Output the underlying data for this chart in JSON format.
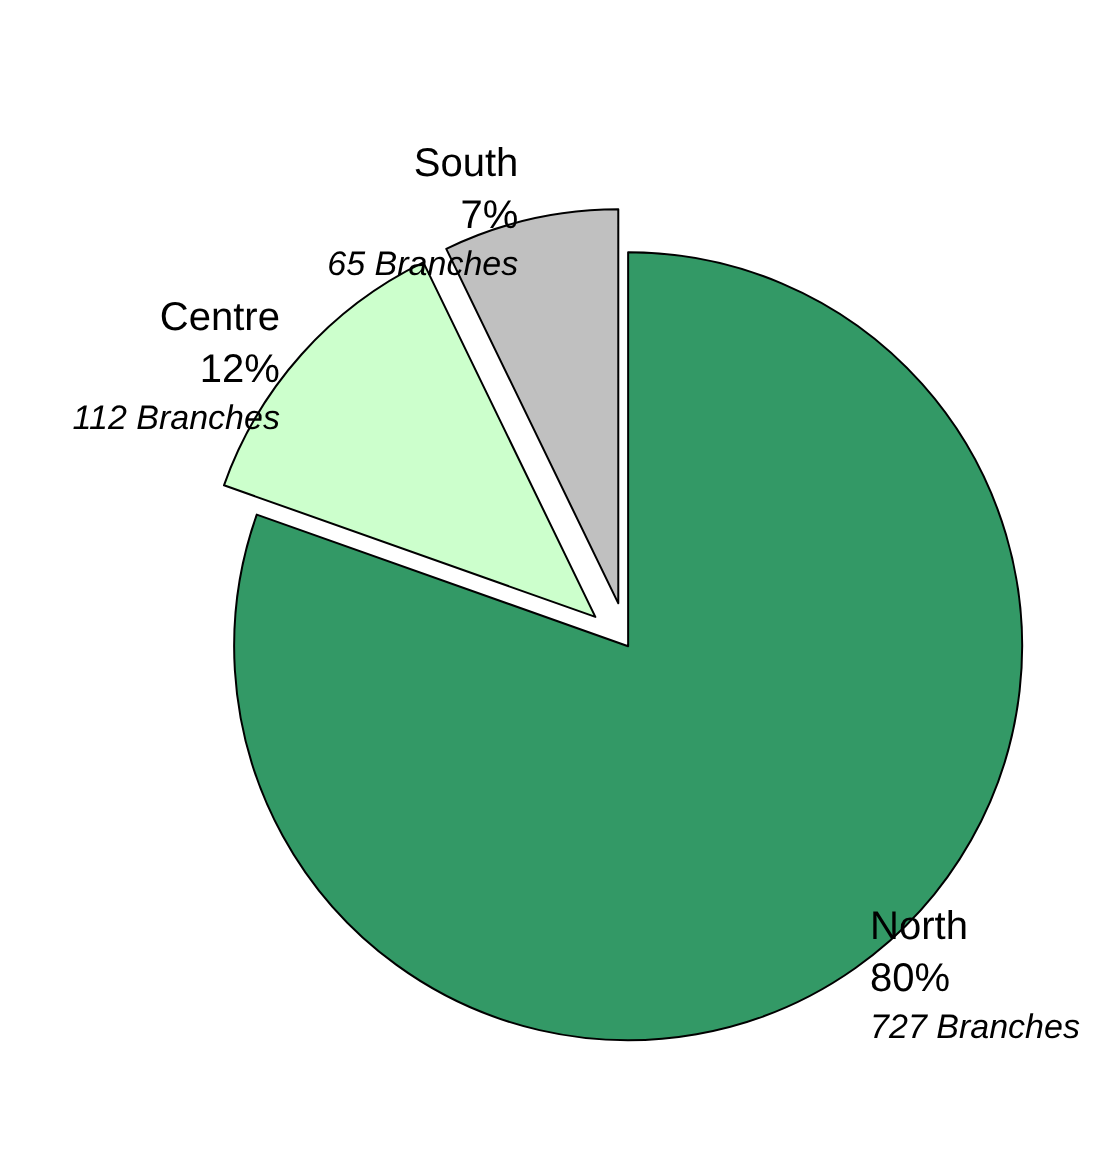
{
  "chart_data": {
    "type": "pie",
    "categories": [
      "North",
      "Centre",
      "South"
    ],
    "values": [
      727,
      112,
      65
    ],
    "colors": [
      "#339966",
      "#ccffcc",
      "#c0c0c0"
    ],
    "value_labels": [
      "80%\n727 Branches",
      "12%\n112 Branches",
      "7%\n65 Branches"
    ]
  }
}
